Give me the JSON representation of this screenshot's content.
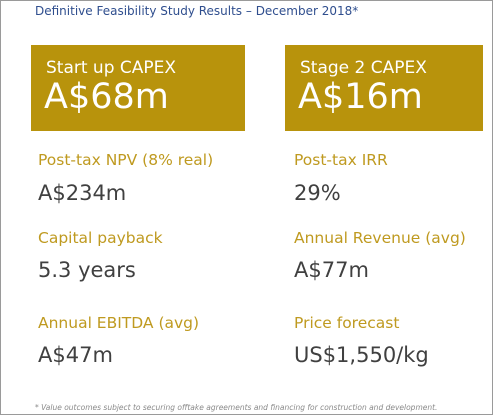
{
  "header": {
    "title": "Definitive Feasibility Study Results – December 2018*"
  },
  "boxes": [
    {
      "label": "Start up CAPEX",
      "value": "A$68m"
    },
    {
      "label": "Stage 2 CAPEX",
      "value": "A$16m"
    }
  ],
  "metrics": [
    {
      "label": "Post-tax NPV (8% real)",
      "value": "A$234m"
    },
    {
      "label": "Post-tax IRR",
      "value": "29%"
    },
    {
      "label": "Capital payback",
      "value": "5.3 years"
    },
    {
      "label": "Annual Revenue (avg)",
      "value": "A$77m"
    },
    {
      "label": "Annual EBITDA (avg)",
      "value": "A$47m"
    },
    {
      "label": "Price forecast",
      "value": "US$1,550/kg"
    }
  ],
  "footer": {
    "note": "* Value outcomes subject to securing offtake agreements and financing for construction and development."
  }
}
